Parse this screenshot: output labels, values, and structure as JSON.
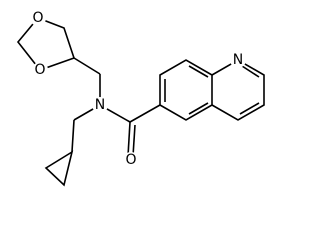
{
  "atoms": [
    {
      "label": "O"
    },
    {
      "label": "O"
    },
    {
      "label": "N"
    },
    {
      "label": "O"
    },
    {
      "label": "N"
    }
  ]
}
